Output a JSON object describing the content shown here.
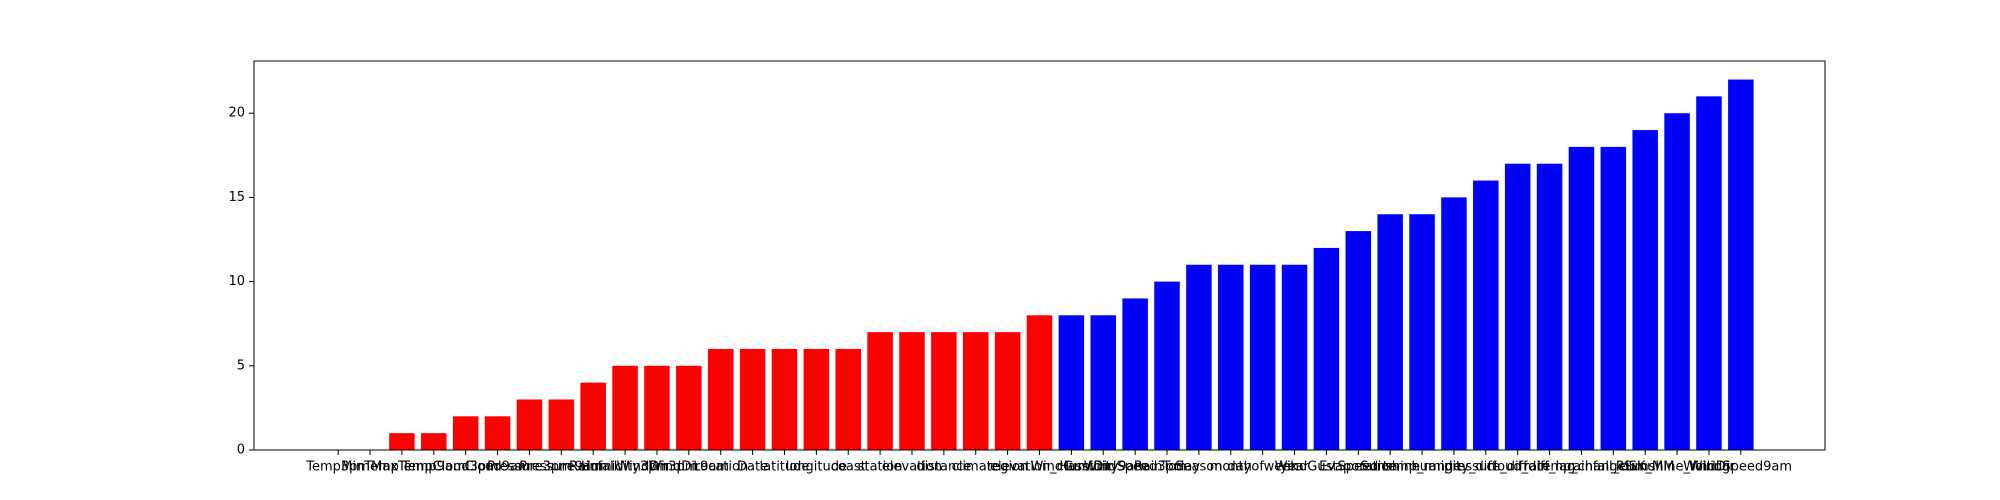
{
  "chart_data": {
    "type": "bar",
    "categories": [
      "Temp3pm",
      "MinTemp",
      "MaxTemp",
      "Temp9am",
      "Cloud3pm",
      "Cloud9am",
      "Pressure3pm",
      "Pressure9am",
      "Rainfall",
      "Humidity3pm",
      "WindDir3pm",
      "WindDir9am",
      "Location",
      "Date",
      "latitude",
      "longitude",
      "coast",
      "station",
      "elevation",
      "distance",
      "climate",
      "region",
      "elevation_class",
      "WindGustDir",
      "Humidity9am",
      "WindSpeed3pm",
      "RainToday",
      "Season",
      "month",
      "dayofweek",
      "year",
      "WindGustSpeed",
      "Evaporation",
      "Sunshine",
      "temp_range",
      "humidity_diff",
      "pressure_diff",
      "cloud_diff",
      "rain_lag",
      "temp_change",
      "rainfall_cumul",
      "RISK_MM",
      "Sunshine_rolling",
      "WindDir",
      "WindSpeed9am"
    ],
    "values": [
      0,
      0,
      1,
      1,
      2,
      2,
      3,
      3,
      4,
      5,
      5,
      5,
      6,
      6,
      6,
      6,
      6,
      7,
      7,
      7,
      7,
      7,
      8,
      8,
      8,
      9,
      10,
      11,
      11,
      11,
      11,
      12,
      13,
      14,
      14,
      15,
      16,
      17,
      17,
      18,
      18,
      19,
      20,
      21,
      22
    ],
    "colors": [
      "#ff0000",
      "#ff0000",
      "#ff0000",
      "#ff0000",
      "#ff0000",
      "#ff0000",
      "#ff0000",
      "#ff0000",
      "#ff0000",
      "#ff0000",
      "#ff0000",
      "#ff0000",
      "#ff0000",
      "#ff0000",
      "#ff0000",
      "#ff0000",
      "#ff0000",
      "#ff0000",
      "#ff0000",
      "#ff0000",
      "#ff0000",
      "#ff0000",
      "#ff0000",
      "#0000ff",
      "#0000ff",
      "#0000ff",
      "#0000ff",
      "#0000ff",
      "#0000ff",
      "#0000ff",
      "#0000ff",
      "#0000ff",
      "#0000ff",
      "#0000ff",
      "#0000ff",
      "#0000ff",
      "#0000ff",
      "#0000ff",
      "#0000ff",
      "#0000ff",
      "#0000ff",
      "#0000ff",
      "#0000ff",
      "#0000ff",
      "#0000ff"
    ],
    "ylim": [
      0,
      23.1
    ],
    "yticks": [
      0,
      5,
      10,
      15,
      20
    ],
    "grid": false
  }
}
